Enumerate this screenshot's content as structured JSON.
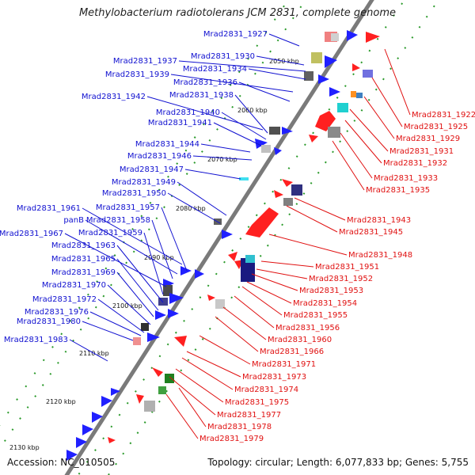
{
  "title": "Methylobacterium radiotolerans JCM 2831, complete genome",
  "accession": "Accession: NC_010505",
  "topology": "Topology: circular; Length: 6,077,833 bp; Genes: 5,755",
  "colors": {
    "forward_label": "#1010d0",
    "reverse_label": "#e01010",
    "backbone": "#707070"
  },
  "ticks": [
    "2050 kbp",
    "2060 kbp",
    "2070 kbp",
    "2080 kbp",
    "2090 kbp",
    "2100 kbp",
    "2110 kbp",
    "2120 kbp",
    "2130 kbp"
  ],
  "forward_genes": [
    "Mrad2831_1927",
    "Mrad2831_1930",
    "Mrad2831_1937",
    "Mrad2831_1934",
    "Mrad2831_1939",
    "Mrad2831_1936",
    "Mrad2831_1942",
    "Mrad2831_1938",
    "Mrad2831_1940",
    "Mrad2831_1941",
    "Mrad2831_1944",
    "Mrad2831_1946",
    "Mrad2831_1947",
    "Mrad2831_1949",
    "Mrad2831_1950",
    "Mrad2831_1961",
    "Mrad2831_1957",
    "panB",
    "Mrad2831_1958",
    "Mrad2831_1967",
    "Mrad2831_1959",
    "Mrad2831_1963",
    "Mrad2831_1965",
    "Mrad2831_1969",
    "Mrad2831_1970",
    "Mrad2831_1972",
    "Mrad2831_1976",
    "Mrad2831_1980",
    "Mrad2831_1983"
  ],
  "reverse_genes": [
    "Mrad2831_1922",
    "Mrad2831_1925",
    "Mrad2831_1929",
    "Mrad2831_1931",
    "Mrad2831_1932",
    "Mrad2831_1933",
    "Mrad2831_1935",
    "Mrad2831_1943",
    "Mrad2831_1945",
    "Mrad2831_1948",
    "Mrad2831_1951",
    "Mrad2831_1952",
    "Mrad2831_1953",
    "Mrad2831_1954",
    "Mrad2831_1955",
    "Mrad2831_1956",
    "Mrad2831_1960",
    "Mrad2831_1966",
    "Mrad2831_1971",
    "Mrad2831_1973",
    "Mrad2831_1974",
    "Mrad2831_1975",
    "Mrad2831_1977",
    "Mrad2831_1978",
    "Mrad2831_1979"
  ]
}
